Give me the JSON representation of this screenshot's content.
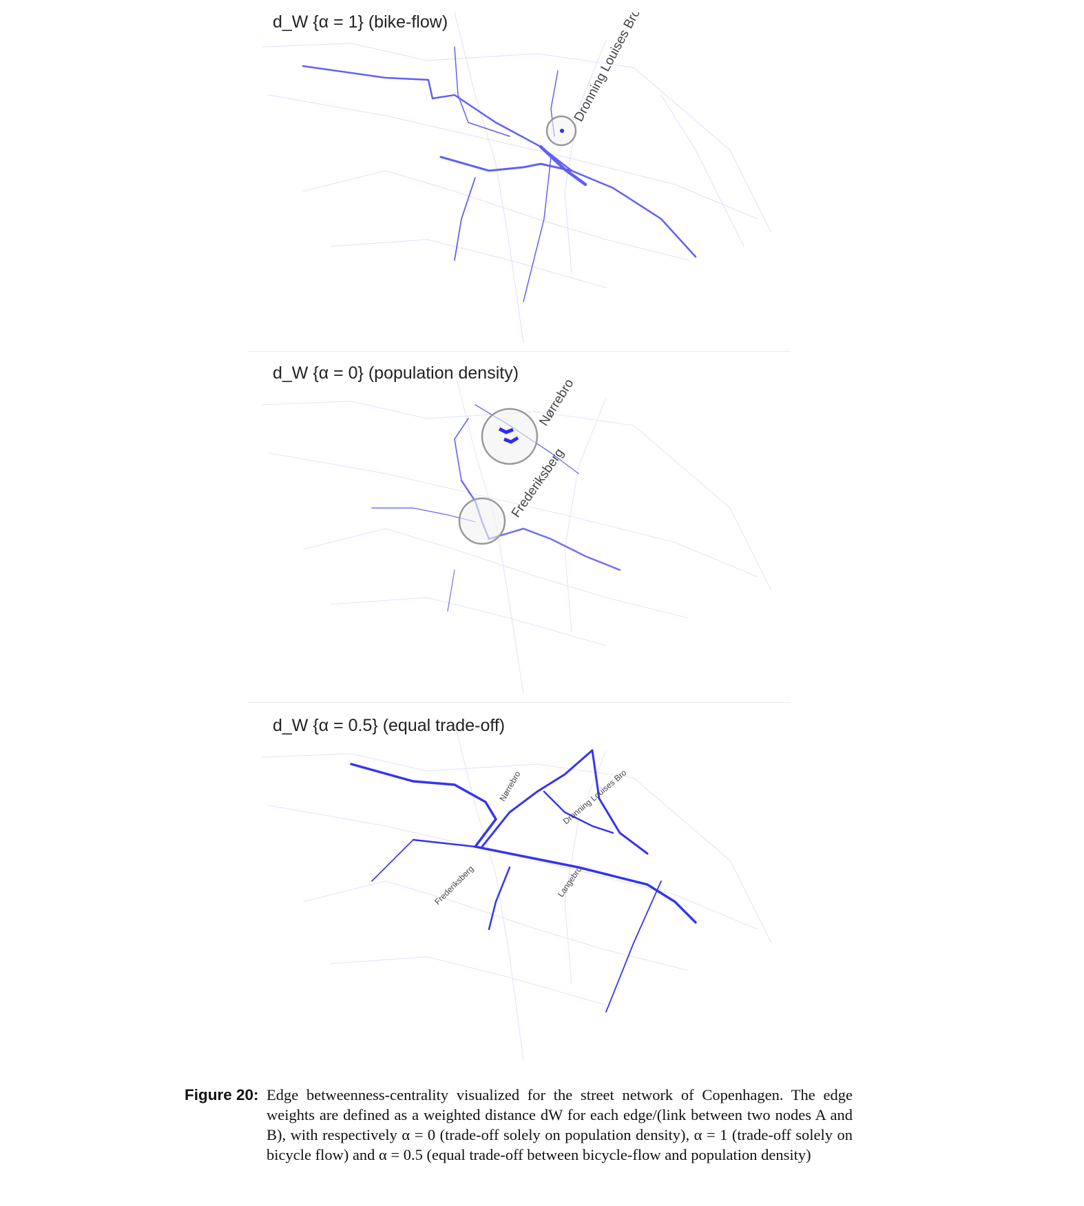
{
  "panels": [
    {
      "title": "d_W {α = 1}  (bike-flow)",
      "labels": [
        "Dronning Louises Bro"
      ]
    },
    {
      "title": "d_W {α = 0}  (population density)",
      "labels": [
        "Nørrebro",
        "Frederiksberg"
      ]
    },
    {
      "title": "d_W {α = 0.5}  (equal trade-off)",
      "labels": [
        "Nørrebro",
        "Dronning Louises Bro",
        "Frederiksberg",
        "Langebro"
      ]
    }
  ],
  "caption": {
    "label": "Figure 20:",
    "text": "Edge betweenness-centrality visualized for the street network of Copenhagen. The edge weights are defined as a weighted distance dW for each edge/(link between two nodes A and B), with respectively α = 0 (trade-off solely on population density), α = 1 (trade-off solely on bicycle flow) and α = 0.5 (equal trade-off between bicycle-flow and population density)"
  },
  "colors": {
    "edge_strong": "#2d2df0",
    "edge_weak": "#c8c8fa",
    "highlight_circle": "#999999"
  }
}
